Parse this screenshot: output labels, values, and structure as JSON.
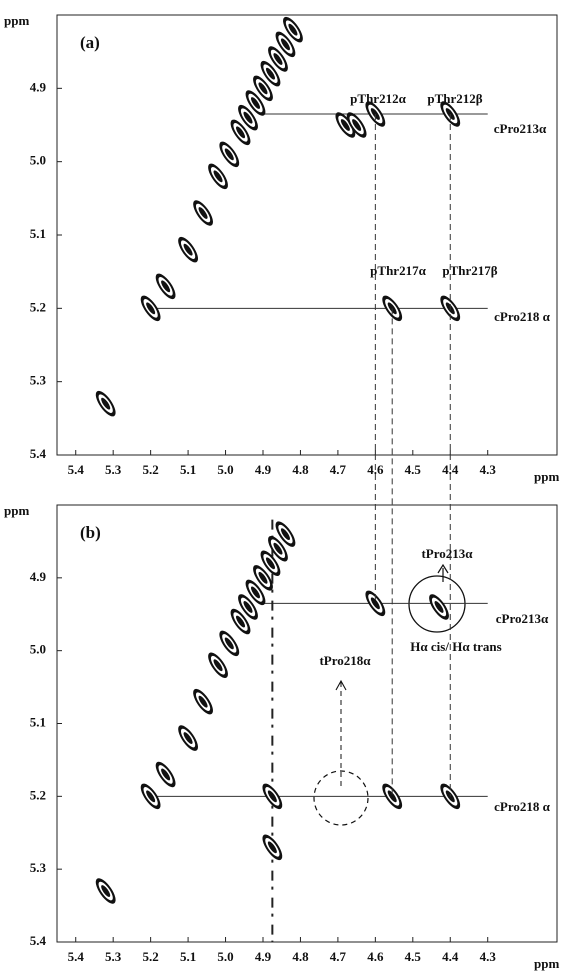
{
  "chart_data": [
    {
      "type": "contour",
      "panel": "(a)",
      "y_label": "ppm",
      "x_label": "ppm",
      "xlim": [
        5.45,
        4.115
      ],
      "ylim": [
        4.8,
        5.4
      ],
      "xticks": [
        5.4,
        5.3,
        5.2,
        5.1,
        {
          "value": 5,
          "label": "5.0"
        },
        4.9,
        4.8,
        4.7,
        4.6,
        4.5,
        4.4,
        4.3
      ],
      "yticks": [
        4.9,
        {
          "value": 5,
          "label": "5.0"
        },
        5.1,
        5.2,
        5.3,
        5.4
      ],
      "peaks": {
        "x": [
          5.32,
          5.2,
          5.16,
          5.1,
          5.06,
          5.02,
          4.99,
          4.96,
          4.94,
          4.92,
          4.9,
          4.88,
          4.86,
          4.84,
          4.82,
          4.6,
          4.4,
          4.555,
          4.4,
          4.68,
          4.65
        ],
        "y": [
          5.33,
          5.2,
          5.17,
          5.12,
          5.07,
          5.02,
          4.99,
          4.96,
          4.94,
          4.92,
          4.9,
          4.88,
          4.86,
          4.84,
          4.82,
          4.935,
          4.935,
          5.2,
          5.2,
          4.95,
          4.95
        ]
      },
      "hlines": [
        {
          "y": 4.935,
          "x": [
            4.9,
            4.3
          ]
        },
        {
          "y": 5.2,
          "x": [
            5.2,
            4.3
          ]
        }
      ],
      "annotations": [
        "pThr212α",
        "pThr212β",
        "cPro213α",
        "pThr217α",
        "pThr217β",
        "cPro218 α"
      ]
    },
    {
      "type": "contour",
      "panel": "(b)",
      "y_label": "ppm",
      "x_label": "ppm",
      "xlim": [
        5.45,
        4.115
      ],
      "ylim": [
        4.8,
        5.4
      ],
      "xticks": [
        5.4,
        5.3,
        5.2,
        5.1,
        {
          "value": 5,
          "label": "5.0"
        },
        4.9,
        4.8,
        4.7,
        4.6,
        4.5,
        4.4,
        4.3
      ],
      "yticks": [
        4.9,
        {
          "value": 5,
          "label": "5.0"
        },
        5.1,
        5.2,
        5.3,
        5.4
      ],
      "peaks": {
        "x": [
          5.32,
          5.2,
          5.16,
          5.1,
          5.06,
          5.02,
          4.99,
          4.96,
          4.94,
          4.92,
          4.9,
          4.88,
          4.86,
          4.84,
          4.6,
          4.43,
          4.555,
          4.4,
          4.875,
          4.875
        ],
        "y": [
          5.33,
          5.2,
          5.17,
          5.12,
          5.07,
          5.02,
          4.99,
          4.96,
          4.94,
          4.92,
          4.9,
          4.88,
          4.86,
          4.84,
          4.935,
          4.94,
          5.2,
          5.2,
          5.2,
          5.27
        ]
      },
      "hlines": [
        {
          "y": 4.935,
          "x": [
            4.9,
            4.3
          ]
        },
        {
          "y": 5.2,
          "x": [
            5.2,
            4.3
          ]
        }
      ],
      "vlines": [
        {
          "x": 4.875,
          "y": [
            4.82,
            5.4
          ]
        }
      ],
      "annotations": [
        "tPro213α",
        "cPro213α",
        "Hα cis/ Hα trans",
        "tPro218α",
        "cPro218 α"
      ]
    }
  ]
}
